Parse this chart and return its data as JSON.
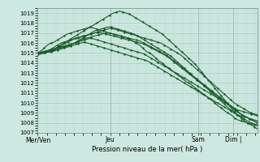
{
  "xlabel": "Pression niveau de la mer( hPa )",
  "ylim": [
    1007,
    1019.5
  ],
  "yticks": [
    1007,
    1008,
    1009,
    1010,
    1011,
    1012,
    1013,
    1014,
    1015,
    1016,
    1017,
    1018,
    1019
  ],
  "xtick_labels": [
    "Mer/Ven",
    "Jeu",
    "Sam",
    "Dim |"
  ],
  "xtick_positions": [
    0.0,
    0.33,
    0.73,
    0.89
  ],
  "bg_color": "#cde8e0",
  "grid_major_color": "#a8c8c0",
  "grid_minor_color": "#b8d8d0",
  "line_color": "#1a5c2a",
  "line_width": 0.8,
  "lines": [
    [
      1015.0,
      1015.0,
      1015.1,
      1015.2,
      1015.4,
      1015.6,
      1015.8,
      1016.0,
      1016.1,
      1016.2,
      1016.3,
      1016.4,
      1016.5,
      1016.6,
      1016.7,
      1016.8,
      1016.9,
      1017.0,
      1017.1,
      1017.2,
      1017.3,
      1017.4,
      1017.5,
      1017.4,
      1017.3,
      1017.2,
      1017.1,
      1017.0,
      1016.9,
      1016.8,
      1016.7,
      1016.6,
      1016.5,
      1016.4,
      1016.3,
      1016.2,
      1016.1,
      1016.0,
      1015.8,
      1015.6,
      1015.4,
      1015.2,
      1015.0,
      1014.8,
      1014.5,
      1014.2,
      1013.9,
      1013.6,
      1013.3,
      1013.0,
      1012.7,
      1012.4,
      1012.1,
      1011.8,
      1011.5,
      1011.2,
      1010.9,
      1010.6,
      1010.3,
      1010.0,
      1009.8,
      1009.6,
      1009.4,
      1009.2,
      1009.0,
      1008.9,
      1008.8
    ],
    [
      1015.0,
      1015.0,
      1015.1,
      1015.2,
      1015.3,
      1015.5,
      1015.7,
      1015.9,
      1016.1,
      1016.3,
      1016.5,
      1016.6,
      1016.7,
      1016.8,
      1016.9,
      1017.0,
      1017.1,
      1017.0,
      1016.9,
      1016.8,
      1016.7,
      1016.6,
      1016.5,
      1016.4,
      1016.3,
      1016.2,
      1016.1,
      1016.0,
      1015.9,
      1015.7,
      1015.5,
      1015.3,
      1015.1,
      1014.9,
      1014.7,
      1014.4,
      1014.1,
      1013.8,
      1013.5,
      1013.2,
      1012.9,
      1012.6,
      1012.3,
      1012.0,
      1011.7,
      1011.4,
      1011.1,
      1010.8,
      1010.5,
      1010.2,
      1009.9,
      1009.6,
      1009.3,
      1009.0,
      1008.8,
      1008.6,
      1008.4,
      1008.2,
      1008.0
    ],
    [
      1015.0,
      1015.1,
      1015.2,
      1015.3,
      1015.4,
      1015.5,
      1015.6,
      1015.7,
      1015.8,
      1015.9,
      1016.0,
      1016.2,
      1016.4,
      1016.5,
      1016.6,
      1016.7,
      1016.8,
      1016.9,
      1017.0,
      1017.0,
      1016.9,
      1016.8,
      1016.7,
      1016.6,
      1016.5,
      1016.4,
      1016.3,
      1016.2,
      1016.0,
      1015.8,
      1015.6,
      1015.4,
      1015.2,
      1015.0,
      1014.8,
      1014.5,
      1014.2,
      1013.9,
      1013.6,
      1013.3,
      1013.0,
      1012.7,
      1012.4,
      1012.1,
      1011.8,
      1011.5,
      1011.2,
      1010.9,
      1010.6,
      1010.3,
      1010.0,
      1009.7,
      1009.4,
      1009.1,
      1008.8,
      1008.6,
      1008.4,
      1008.2,
      1008.0
    ],
    [
      1014.9,
      1015.0,
      1015.0,
      1015.1,
      1015.2,
      1015.3,
      1015.4,
      1015.5,
      1015.6,
      1015.7,
      1015.8,
      1016.0,
      1016.2,
      1016.4,
      1016.6,
      1016.8,
      1017.0,
      1017.2,
      1017.3,
      1017.4,
      1017.5,
      1017.6,
      1017.6,
      1017.5,
      1017.4,
      1017.3,
      1017.2,
      1017.1,
      1017.0,
      1016.9,
      1016.7,
      1016.5,
      1016.3,
      1016.1,
      1015.9,
      1015.7,
      1015.5,
      1015.3,
      1015.1,
      1014.9,
      1014.7,
      1014.4,
      1014.1,
      1013.8,
      1013.5,
      1013.2,
      1012.9,
      1012.6,
      1012.3,
      1012.0,
      1011.7,
      1011.4,
      1011.1,
      1010.8,
      1010.5,
      1010.2,
      1009.9,
      1009.6,
      1009.3,
      1009.0,
      1008.8,
      1008.6,
      1008.4,
      1008.2,
      1008.0,
      1007.9,
      1007.8
    ],
    [
      1015.0,
      1015.0,
      1015.0,
      1015.1,
      1015.1,
      1015.2,
      1015.3,
      1015.4,
      1015.5,
      1015.6,
      1015.7,
      1015.8,
      1015.9,
      1016.0,
      1016.1,
      1016.0,
      1015.9,
      1015.8,
      1015.7,
      1015.6,
      1015.5,
      1015.4,
      1015.3,
      1015.2,
      1015.1,
      1015.0,
      1014.9,
      1014.8,
      1014.7,
      1014.6,
      1014.5,
      1014.4,
      1014.3,
      1014.2,
      1014.0,
      1013.8,
      1013.6,
      1013.4,
      1013.2,
      1013.0,
      1012.8,
      1012.6,
      1012.4,
      1012.2,
      1012.0,
      1011.8,
      1011.6,
      1011.4,
      1011.2,
      1011.0,
      1010.8,
      1010.6,
      1010.4,
      1010.2,
      1010.0,
      1009.8,
      1009.6,
      1009.4,
      1009.2,
      1009.0,
      1008.8,
      1008.7,
      1008.6,
      1008.5,
      1008.4,
      1008.3,
      1008.2
    ],
    [
      1015.0,
      1015.0,
      1015.1,
      1015.2,
      1015.3,
      1015.4,
      1015.5,
      1015.6,
      1015.7,
      1015.8,
      1015.9,
      1016.0,
      1016.1,
      1016.2,
      1016.3,
      1016.4,
      1016.5,
      1016.4,
      1016.3,
      1016.2,
      1016.1,
      1016.0,
      1015.9,
      1015.8,
      1015.7,
      1015.6,
      1015.5,
      1015.4,
      1015.3,
      1015.2,
      1015.1,
      1015.0,
      1014.9,
      1014.7,
      1014.5,
      1014.3,
      1014.1,
      1013.9,
      1013.7,
      1013.5,
      1013.3,
      1013.1,
      1012.9,
      1012.7,
      1012.5,
      1012.3,
      1012.1,
      1011.9,
      1011.7,
      1011.5,
      1011.3,
      1011.1,
      1010.9,
      1010.7,
      1010.5,
      1010.3,
      1010.1,
      1009.9,
      1009.7,
      1009.5,
      1009.3,
      1009.2,
      1009.1,
      1009.0,
      1008.9,
      1008.8,
      1008.7
    ],
    [
      1014.8,
      1014.9,
      1015.0,
      1015.1,
      1015.2,
      1015.4,
      1015.6,
      1015.8,
      1016.0,
      1016.2,
      1016.4,
      1016.6,
      1016.8,
      1017.0,
      1017.2,
      1017.4,
      1017.6,
      1017.8,
      1018.0,
      1018.2,
      1018.4,
      1018.6,
      1018.8,
      1019.0,
      1019.1,
      1019.2,
      1019.1,
      1019.0,
      1018.9,
      1018.7,
      1018.5,
      1018.3,
      1018.1,
      1017.9,
      1017.7,
      1017.5,
      1017.3,
      1017.1,
      1016.9,
      1016.6,
      1016.3,
      1016.0,
      1015.7,
      1015.4,
      1015.1,
      1014.8,
      1014.5,
      1014.2,
      1013.9,
      1013.5,
      1013.1,
      1012.7,
      1012.3,
      1011.9,
      1011.5,
      1011.1,
      1010.7,
      1010.3,
      1009.9,
      1009.5,
      1009.1,
      1008.8,
      1008.5,
      1008.2,
      1008.0,
      1007.8,
      1007.6,
      1007.4
    ],
    [
      1015.0,
      1015.2,
      1015.5,
      1015.8,
      1016.0,
      1016.1,
      1016.3,
      1016.5,
      1016.7,
      1016.9,
      1017.0,
      1017.1,
      1017.2,
      1017.3,
      1017.4,
      1017.5,
      1017.6,
      1017.5,
      1017.4,
      1017.3,
      1017.2,
      1017.1,
      1017.0,
      1016.9,
      1016.8,
      1016.7,
      1016.6,
      1016.5,
      1016.4,
      1016.2,
      1016.0,
      1015.8,
      1015.5,
      1015.2,
      1015.0,
      1014.8,
      1014.5,
      1014.2,
      1014.0,
      1013.7,
      1013.5,
      1013.2,
      1013.0,
      1012.7,
      1012.5,
      1012.2,
      1012.0,
      1011.8,
      1011.5,
      1011.3,
      1011.0,
      1010.8,
      1010.5,
      1010.3,
      1010.0,
      1009.7,
      1009.5,
      1009.2,
      1009.0,
      1008.8,
      1008.5,
      1008.3,
      1008.2,
      1008.1,
      1008.0,
      1007.9,
      1007.8,
      1007.7
    ]
  ]
}
